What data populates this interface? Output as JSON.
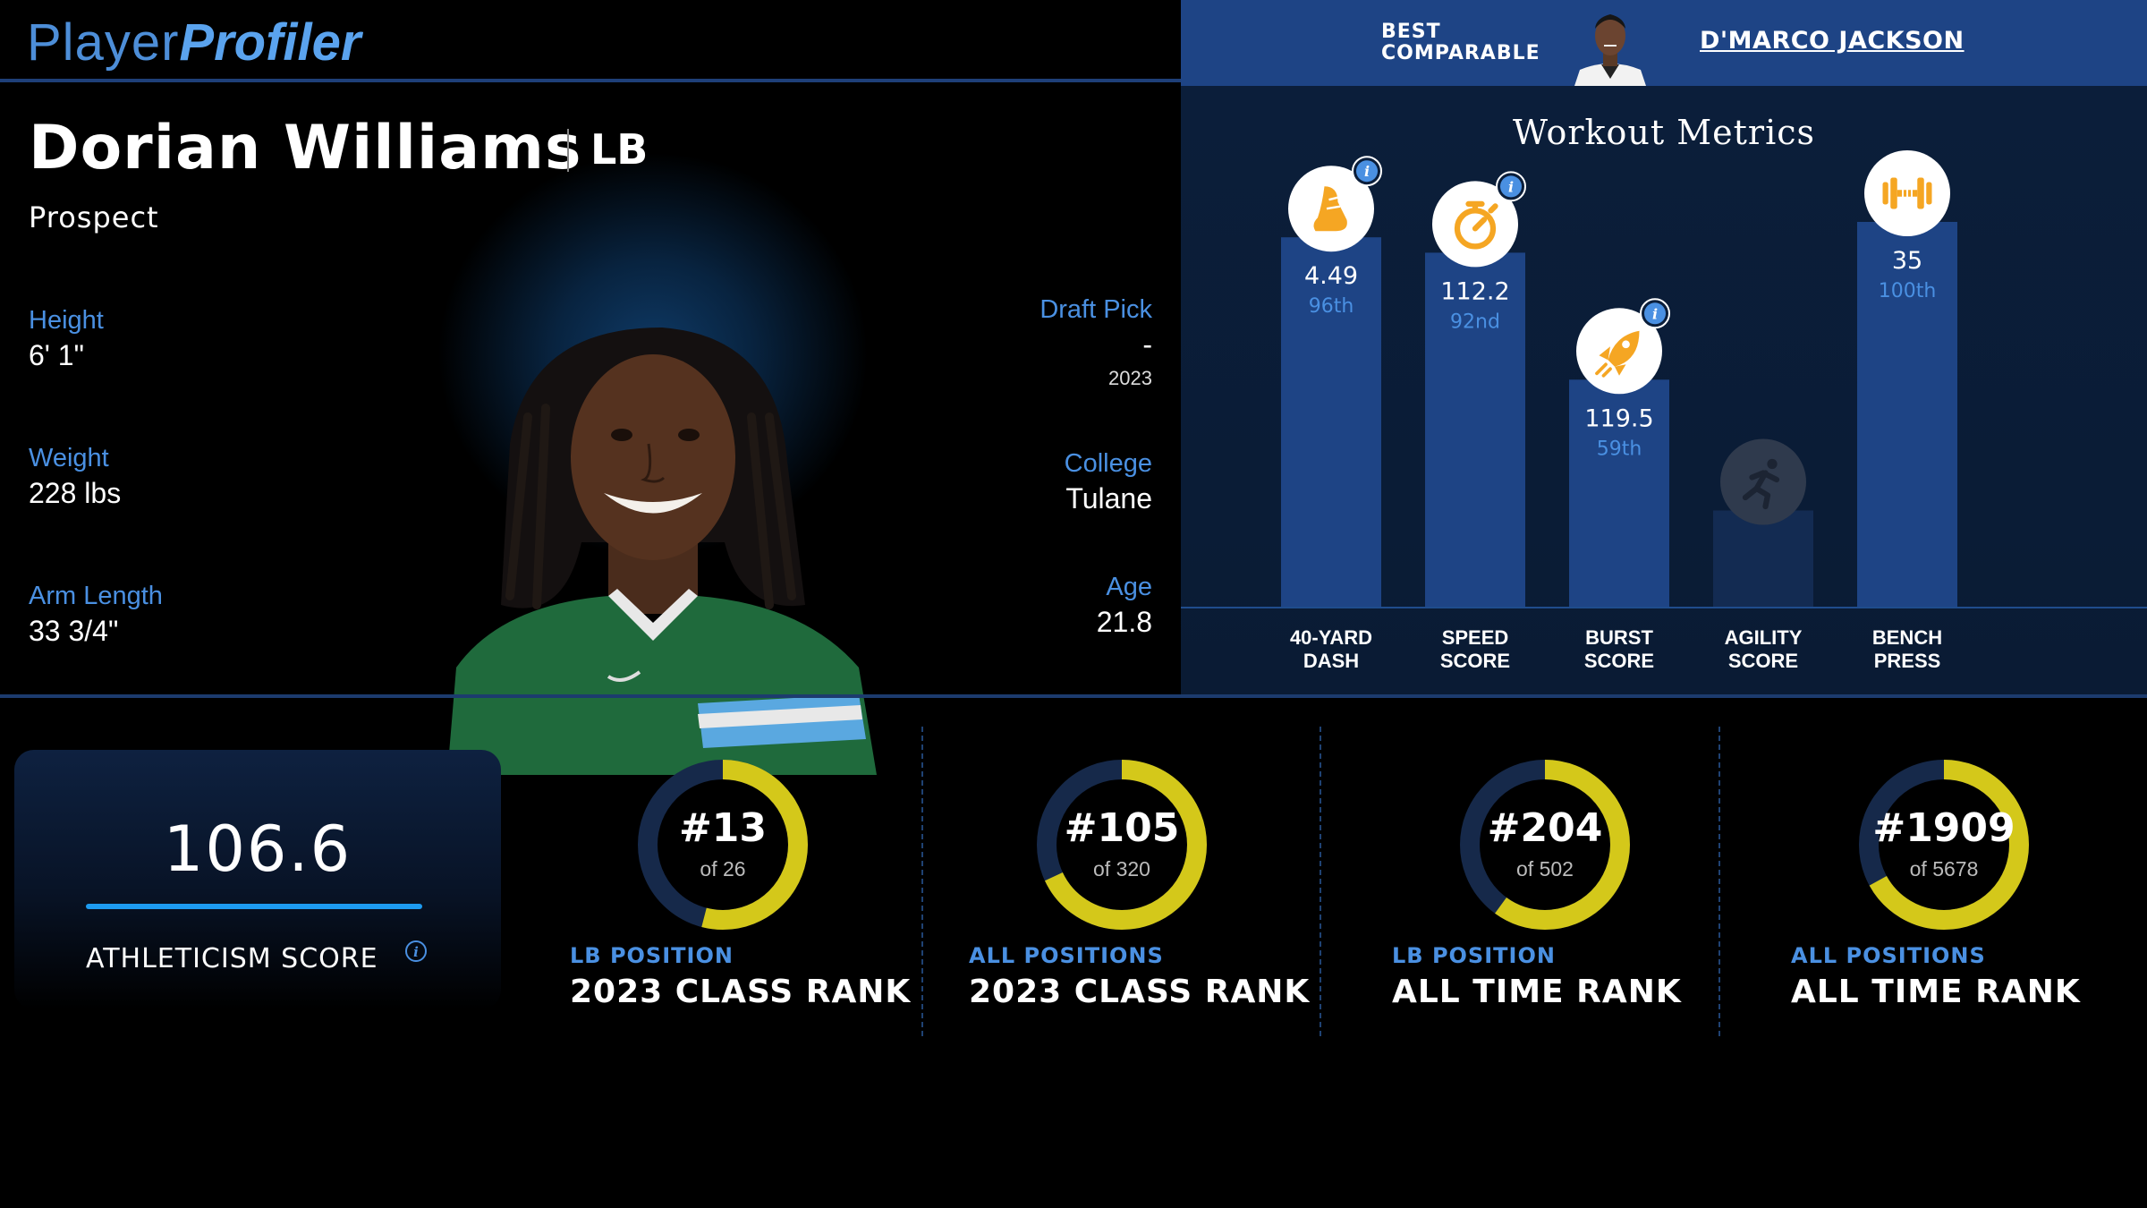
{
  "header": {
    "logo_part1": "Player",
    "logo_part2": "Profiler",
    "comparable_label_line1": "BEST",
    "comparable_label_line2": "COMPARABLE",
    "comparable_name": "D'MARCO JACKSON"
  },
  "player": {
    "name": "Dorian Williams",
    "position": "LB",
    "status": "Prospect",
    "height_label": "Height",
    "height": "6' 1\"",
    "weight_label": "Weight",
    "weight": "228 lbs",
    "arm_label": "Arm Length",
    "arm_length": "33 3/4\"",
    "draft_label": "Draft Pick",
    "draft_pick": "-",
    "draft_year": "2023",
    "college_label": "College",
    "college": "Tulane",
    "age_label": "Age",
    "age": "21.8",
    "jersey_color": "#1f6a3c"
  },
  "workout": {
    "title": "Workout Metrics",
    "colors": {
      "bar": "#1e4485",
      "bar_empty": "#132b52",
      "icon": "#f5a623",
      "pct": "#4a90e2"
    },
    "metrics": [
      {
        "label1": "40-YARD",
        "label2": "DASH",
        "value": "4.49",
        "percentile_text": "96th",
        "percentile": 96,
        "icon": "shoe-icon",
        "info": true
      },
      {
        "label1": "SPEED",
        "label2": "SCORE",
        "value": "112.2",
        "percentile_text": "92nd",
        "percentile": 92,
        "icon": "stopwatch-icon",
        "info": true
      },
      {
        "label1": "BURST",
        "label2": "SCORE",
        "value": "119.5",
        "percentile_text": "59th",
        "percentile": 59,
        "icon": "rocket-icon",
        "info": true
      },
      {
        "label1": "AGILITY",
        "label2": "SCORE",
        "value": "",
        "percentile_text": "",
        "percentile": 25,
        "icon": "runner-icon",
        "info": false,
        "empty": true
      },
      {
        "label1": "BENCH",
        "label2": "PRESS",
        "value": "35",
        "percentile_text": "100th",
        "percentile": 100,
        "icon": "dumbbell-icon",
        "info": false
      }
    ]
  },
  "athleticism": {
    "score": "106.6",
    "label": "ATHLETICISM SCORE",
    "bar_color": "#1d9bf0"
  },
  "ranks": [
    {
      "rank": "#13",
      "of": "of 26",
      "category": "LB POSITION",
      "title": "2023 CLASS RANK",
      "fraction": 0.54
    },
    {
      "rank": "#105",
      "of": "of 320",
      "category": "ALL POSITIONS",
      "title": "2023 CLASS RANK",
      "fraction": 0.68
    },
    {
      "rank": "#204",
      "of": "of 502",
      "category": "LB POSITION",
      "title": "ALL TIME RANK",
      "fraction": 0.6
    },
    {
      "rank": "#1909",
      "of": "of 5678",
      "category": "ALL POSITIONS",
      "title": "ALL TIME RANK",
      "fraction": 0.67
    }
  ],
  "ring_colors": {
    "fill": "#d4c81a",
    "track": "#16294a"
  }
}
